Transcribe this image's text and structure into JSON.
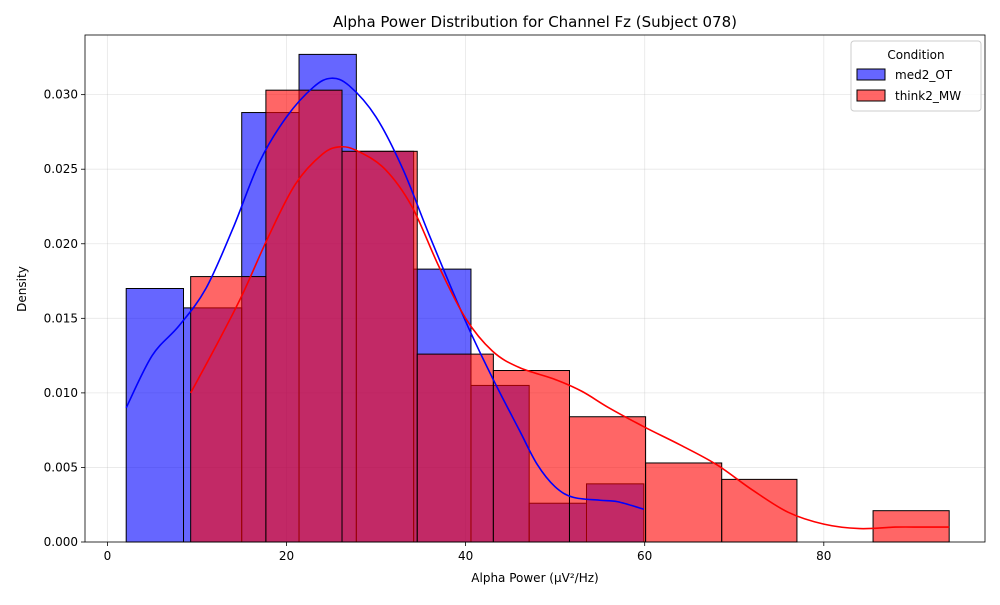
{
  "chart_data": {
    "type": "histogram",
    "title": "Alpha Power Distribution for Channel Fz (Subject 078)",
    "xlabel": "Alpha Power (μV²/Hz)",
    "ylabel": "Density",
    "xlim": [
      -2.5,
      98
    ],
    "ylim": [
      0,
      0.034
    ],
    "xticks": [
      0,
      20,
      40,
      60,
      80
    ],
    "xtick_labels": [
      "0",
      "20",
      "40",
      "60",
      "80"
    ],
    "yticks": [
      0,
      0.005,
      0.01,
      0.015,
      0.02,
      0.025,
      0.03
    ],
    "ytick_labels": [
      "0.000",
      "0.005",
      "0.010",
      "0.015",
      "0.020",
      "0.025",
      "0.030"
    ],
    "grid": true,
    "legend": {
      "title": "Condition",
      "position": "top-right"
    },
    "series": [
      {
        "name": "med2_OT",
        "color": "#0000ff",
        "bar_alpha": 0.6,
        "bins": [
          {
            "x0": 2.1,
            "x1": 8.5,
            "density": 0.017
          },
          {
            "x0": 8.5,
            "x1": 15.0,
            "density": 0.0157
          },
          {
            "x0": 15.0,
            "x1": 21.4,
            "density": 0.0288
          },
          {
            "x0": 21.4,
            "x1": 27.8,
            "density": 0.0327
          },
          {
            "x0": 27.8,
            "x1": 34.2,
            "density": 0.0262
          },
          {
            "x0": 34.2,
            "x1": 40.6,
            "density": 0.0183
          },
          {
            "x0": 40.6,
            "x1": 47.1,
            "density": 0.0105
          },
          {
            "x0": 47.1,
            "x1": 53.5,
            "density": 0.0026
          },
          {
            "x0": 53.5,
            "x1": 59.9,
            "density": 0.0039
          }
        ],
        "kde": [
          [
            2.1,
            0.009
          ],
          [
            5.0,
            0.0125
          ],
          [
            8.0,
            0.0145
          ],
          [
            11.0,
            0.017
          ],
          [
            14.0,
            0.021
          ],
          [
            17.0,
            0.0255
          ],
          [
            20.0,
            0.0285
          ],
          [
            23.0,
            0.0305
          ],
          [
            25.0,
            0.0311
          ],
          [
            27.0,
            0.0306
          ],
          [
            30.0,
            0.0285
          ],
          [
            33.0,
            0.025
          ],
          [
            36.0,
            0.0205
          ],
          [
            40.0,
            0.0148
          ],
          [
            43.0,
            0.011
          ],
          [
            46.0,
            0.0075
          ],
          [
            48.0,
            0.0052
          ],
          [
            50.0,
            0.0037
          ],
          [
            52.0,
            0.003
          ],
          [
            55.0,
            0.0028
          ],
          [
            57.0,
            0.0027
          ],
          [
            59.9,
            0.0022
          ]
        ]
      },
      {
        "name": "think2_MW",
        "color": "#ff0000",
        "bar_alpha": 0.6,
        "bins": [
          {
            "x0": 9.3,
            "x1": 17.7,
            "density": 0.0178
          },
          {
            "x0": 17.7,
            "x1": 26.2,
            "density": 0.0303
          },
          {
            "x0": 26.2,
            "x1": 34.6,
            "density": 0.0262
          },
          {
            "x0": 34.6,
            "x1": 43.1,
            "density": 0.0126
          },
          {
            "x0": 43.1,
            "x1": 51.6,
            "density": 0.0115
          },
          {
            "x0": 51.6,
            "x1": 60.1,
            "density": 0.0084
          },
          {
            "x0": 60.1,
            "x1": 68.6,
            "density": 0.0053
          },
          {
            "x0": 68.6,
            "x1": 77.0,
            "density": 0.0042
          },
          {
            "x0": 77.0,
            "x1": 85.5,
            "density": 0.0
          },
          {
            "x0": 85.5,
            "x1": 94.0,
            "density": 0.0021
          }
        ],
        "kde": [
          [
            9.3,
            0.01
          ],
          [
            12.0,
            0.013
          ],
          [
            15.0,
            0.0165
          ],
          [
            18.0,
            0.0205
          ],
          [
            21.0,
            0.024
          ],
          [
            24.0,
            0.026
          ],
          [
            26.0,
            0.0265
          ],
          [
            28.0,
            0.0262
          ],
          [
            31.0,
            0.025
          ],
          [
            34.0,
            0.0225
          ],
          [
            37.0,
            0.0185
          ],
          [
            40.0,
            0.015
          ],
          [
            43.0,
            0.0128
          ],
          [
            46.0,
            0.0117
          ],
          [
            50.0,
            0.0109
          ],
          [
            53.0,
            0.0101
          ],
          [
            56.0,
            0.009
          ],
          [
            60.0,
            0.0077
          ],
          [
            64.0,
            0.0065
          ],
          [
            68.0,
            0.0052
          ],
          [
            72.0,
            0.0035
          ],
          [
            76.0,
            0.002
          ],
          [
            80.0,
            0.0012
          ],
          [
            84.0,
            0.0009
          ],
          [
            88.0,
            0.001
          ],
          [
            91.0,
            0.001
          ],
          [
            94.0,
            0.001
          ]
        ]
      }
    ]
  }
}
